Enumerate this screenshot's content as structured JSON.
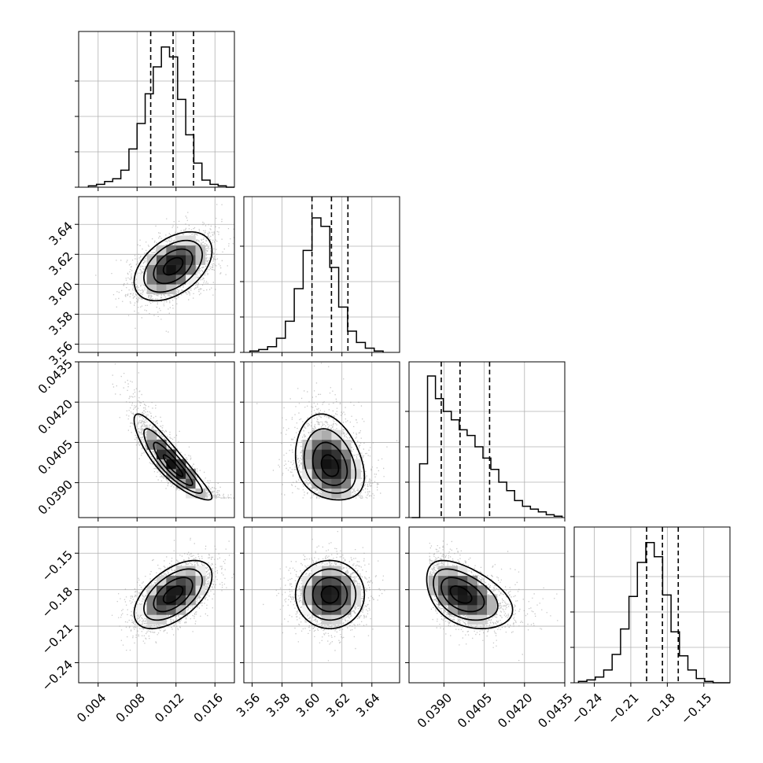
{
  "chart_data": {
    "type": "scatter",
    "subtype": "corner",
    "grid": true,
    "params": [
      {
        "ticks": [
          0.004,
          0.008,
          0.012,
          0.016
        ],
        "tick_labels": [
          "0.004",
          "0.008",
          "0.012",
          "0.016"
        ],
        "range": [
          0.002,
          0.018
        ],
        "hist_range": [
          0.003,
          0.018
        ],
        "quantiles": [
          0.0094,
          0.0117,
          0.0138
        ],
        "mean": 0.0117,
        "sd": 0.002
      },
      {
        "ticks": [
          3.56,
          3.58,
          3.6,
          3.62,
          3.64
        ],
        "tick_labels": [
          "3.56",
          "3.58",
          "3.60",
          "3.62",
          "3.64"
        ],
        "range": [
          3.5545,
          3.6585
        ],
        "hist_range": [
          3.5585,
          3.6475
        ],
        "quantiles": [
          3.6,
          3.613,
          3.624
        ],
        "mean": 3.612,
        "sd": 0.0115
      },
      {
        "ticks": [
          0.039,
          0.0405,
          0.042,
          0.0435
        ],
        "tick_labels": [
          "0.0390",
          "0.0405",
          "0.0420",
          "0.0435"
        ],
        "range": [
          0.0377,
          0.0435
        ],
        "hist_range": [
          0.0378,
          0.0434
        ],
        "quantiles": [
          0.0389,
          0.0396,
          0.0407
        ],
        "mean": 0.0397,
        "sd": 0.0008
      },
      {
        "ticks": [
          -0.24,
          -0.21,
          -0.18,
          -0.15
        ],
        "tick_labels": [
          "−0.24",
          "−0.21",
          "−0.18",
          "−0.15"
        ],
        "range": [
          -0.2565,
          -0.1285
        ],
        "hist_range": [
          -0.253,
          -0.1285
        ],
        "quantiles": [
          -0.197,
          -0.184,
          -0.171
        ],
        "mean": -0.184,
        "sd": 0.014
      }
    ],
    "histograms": [
      [
        1,
        2,
        4,
        6,
        12,
        27,
        45,
        66,
        85,
        99,
        92,
        62,
        37,
        17,
        5,
        2,
        1,
        0
      ],
      [
        1,
        2,
        4,
        10,
        22,
        45,
        72,
        95,
        89,
        60,
        32,
        15,
        7,
        3,
        1
      ],
      [
        0,
        38,
        100,
        84,
        75,
        69,
        62,
        58,
        50,
        42,
        34,
        25,
        19,
        12,
        8,
        6,
        4,
        2,
        1
      ],
      [
        1,
        2,
        4,
        9,
        20,
        38,
        61,
        85,
        99,
        89,
        62,
        36,
        19,
        9,
        3,
        1,
        0,
        0
      ]
    ],
    "hist_ymax": [
      1.1,
      1.1,
      1.1,
      1.1
    ],
    "correlations": [
      [
        1,
        0.45,
        -0.9,
        0.55
      ],
      [
        0.45,
        1,
        -0.25,
        0.0
      ],
      [
        -0.9,
        -0.25,
        1,
        -0.45
      ],
      [
        0.55,
        0.0,
        -0.45,
        1
      ]
    ]
  }
}
